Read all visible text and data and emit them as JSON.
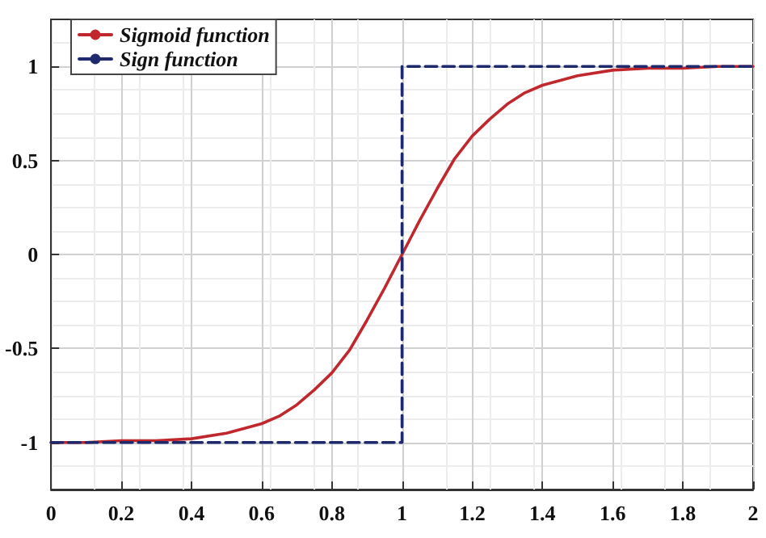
{
  "chart_data": {
    "type": "line",
    "xlim": [
      0,
      2
    ],
    "xticks": [
      0,
      0.2,
      0.4,
      0.6,
      0.8,
      1,
      1.2,
      1.4,
      1.6,
      1.8,
      2
    ],
    "ylim": [
      -1.25,
      1.25
    ],
    "yticks": [
      -1,
      -0.5,
      0,
      0.5,
      1
    ],
    "grid": true,
    "legend": "top left",
    "marker": "none",
    "series": [
      {
        "name": "Sigmoid function",
        "color": "#c0282d",
        "line_style": "solid",
        "x": [
          0,
          0.1,
          0.2,
          0.3,
          0.4,
          0.5,
          0.6,
          0.65,
          0.7,
          0.75,
          0.8,
          0.85,
          0.9,
          0.95,
          1,
          1.05,
          1.1,
          1.15,
          1.2,
          1.25,
          1.3,
          1.35,
          1.4,
          1.5,
          1.6,
          1.7,
          1.8,
          1.9,
          2
        ],
        "values": [
          -1,
          -1,
          -0.99,
          -0.99,
          -0.98,
          -0.95,
          -0.9,
          -0.86,
          -0.8,
          -0.72,
          -0.63,
          -0.51,
          -0.35,
          -0.18,
          0,
          0.18,
          0.35,
          0.51,
          0.63,
          0.72,
          0.8,
          0.86,
          0.9,
          0.95,
          0.98,
          0.99,
          0.99,
          1,
          1
        ]
      },
      {
        "name": "Sign function",
        "color": "#1f2a6e",
        "line_style": "dashed",
        "x": [
          0,
          1,
          1,
          2
        ],
        "values": [
          -1,
          -1,
          1,
          1
        ]
      }
    ]
  }
}
